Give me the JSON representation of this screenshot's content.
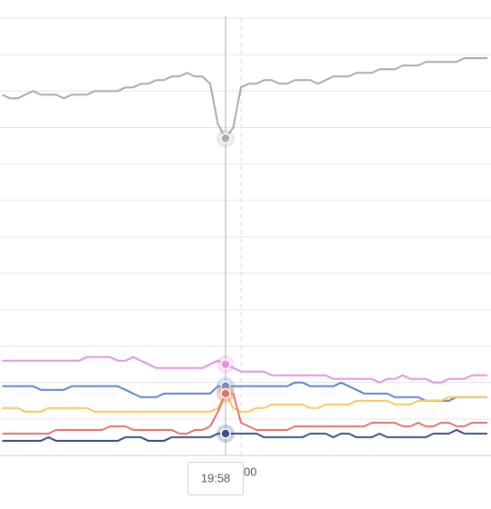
{
  "chart_data": {
    "type": "line",
    "categories": [
      null,
      null,
      null,
      null,
      null,
      null,
      null,
      null,
      null,
      null,
      null,
      null,
      null,
      null,
      null,
      null,
      null,
      null,
      null,
      null,
      null,
      null,
      null,
      null,
      null,
      null,
      null,
      null,
      null,
      "19:58",
      null,
      "00",
      null,
      null,
      null,
      null,
      null,
      null,
      null,
      null,
      null,
      null,
      null,
      null,
      null,
      null,
      null,
      null,
      null,
      null,
      null,
      null,
      null,
      null,
      null,
      null,
      null,
      null,
      null,
      null,
      null,
      null,
      null,
      null
    ],
    "hover_index": 29,
    "ylim": [
      0,
      12
    ],
    "yticks": [
      0,
      1,
      2,
      3,
      4,
      5,
      6,
      7,
      8,
      9,
      10,
      11,
      12
    ],
    "grid": true,
    "series": [
      {
        "color": "#aaaaaa",
        "values": [
          9.9,
          9.8,
          9.8,
          9.9,
          10.0,
          9.9,
          9.9,
          9.9,
          9.8,
          9.9,
          9.9,
          9.9,
          10.0,
          10.0,
          10.0,
          10.0,
          10.1,
          10.1,
          10.2,
          10.2,
          10.3,
          10.3,
          10.4,
          10.4,
          10.5,
          10.4,
          10.4,
          10.2,
          9.1,
          8.7,
          9.0,
          10.1,
          10.2,
          10.2,
          10.3,
          10.3,
          10.2,
          10.2,
          10.3,
          10.3,
          10.3,
          10.2,
          10.3,
          10.4,
          10.4,
          10.4,
          10.5,
          10.5,
          10.5,
          10.6,
          10.6,
          10.6,
          10.7,
          10.7,
          10.7,
          10.8,
          10.8,
          10.8,
          10.8,
          10.8,
          10.9,
          10.9,
          10.9,
          10.9
        ]
      },
      {
        "color": "#e591e0",
        "values": [
          2.6,
          2.6,
          2.6,
          2.6,
          2.6,
          2.6,
          2.6,
          2.6,
          2.6,
          2.6,
          2.6,
          2.7,
          2.7,
          2.7,
          2.7,
          2.6,
          2.6,
          2.7,
          2.6,
          2.5,
          2.4,
          2.4,
          2.4,
          2.4,
          2.4,
          2.4,
          2.4,
          2.5,
          2.6,
          2.5,
          2.4,
          2.3,
          2.3,
          2.3,
          2.3,
          2.2,
          2.2,
          2.2,
          2.2,
          2.2,
          2.2,
          2.2,
          2.2,
          2.1,
          2.1,
          2.1,
          2.1,
          2.1,
          2.1,
          2.0,
          2.1,
          2.1,
          2.2,
          2.1,
          2.1,
          2.1,
          2.0,
          2.0,
          2.1,
          2.1,
          2.1,
          2.2,
          2.2,
          2.2
        ]
      },
      {
        "color": "#5b85cc",
        "values": [
          1.9,
          1.9,
          1.9,
          1.9,
          1.9,
          1.8,
          1.8,
          1.8,
          1.8,
          1.9,
          1.9,
          1.9,
          1.9,
          1.9,
          1.9,
          1.9,
          1.8,
          1.7,
          1.6,
          1.6,
          1.6,
          1.7,
          1.7,
          1.7,
          1.7,
          1.7,
          1.7,
          1.7,
          1.9,
          1.9,
          1.9,
          1.9,
          1.9,
          1.9,
          1.9,
          1.9,
          1.9,
          1.9,
          2.0,
          2.0,
          1.9,
          1.9,
          1.9,
          1.9,
          2.0,
          1.9,
          1.8,
          1.7,
          1.7,
          1.7,
          1.7,
          1.6,
          1.6,
          1.6,
          1.6,
          1.5,
          1.5,
          1.5,
          1.5,
          1.6,
          1.6,
          1.6,
          1.6,
          1.6
        ]
      },
      {
        "color": "#f6c95e",
        "values": [
          1.3,
          1.3,
          1.3,
          1.2,
          1.2,
          1.2,
          1.3,
          1.3,
          1.3,
          1.3,
          1.3,
          1.3,
          1.2,
          1.2,
          1.2,
          1.2,
          1.2,
          1.2,
          1.2,
          1.2,
          1.2,
          1.2,
          1.2,
          1.2,
          1.2,
          1.2,
          1.2,
          1.2,
          1.3,
          1.7,
          1.3,
          1.2,
          1.2,
          1.3,
          1.3,
          1.4,
          1.4,
          1.4,
          1.4,
          1.4,
          1.3,
          1.3,
          1.4,
          1.4,
          1.4,
          1.4,
          1.5,
          1.5,
          1.5,
          1.5,
          1.5,
          1.4,
          1.4,
          1.4,
          1.5,
          1.5,
          1.5,
          1.5,
          1.6,
          1.6,
          1.6,
          1.6,
          1.6,
          1.6
        ]
      },
      {
        "color": "#e0736e",
        "values": [
          0.6,
          0.6,
          0.6,
          0.6,
          0.6,
          0.6,
          0.6,
          0.7,
          0.7,
          0.7,
          0.7,
          0.7,
          0.7,
          0.7,
          0.8,
          0.8,
          0.8,
          0.7,
          0.7,
          0.7,
          0.7,
          0.7,
          0.7,
          0.6,
          0.6,
          0.7,
          0.7,
          0.8,
          1.2,
          1.7,
          1.7,
          0.9,
          0.8,
          0.7,
          0.7,
          0.7,
          0.7,
          0.7,
          0.8,
          0.8,
          0.8,
          0.8,
          0.8,
          0.8,
          0.8,
          0.8,
          0.8,
          0.8,
          0.9,
          0.9,
          0.9,
          0.9,
          0.8,
          0.8,
          0.9,
          0.8,
          0.8,
          0.9,
          0.9,
          0.8,
          0.8,
          0.9,
          0.9,
          0.9
        ]
      },
      {
        "color": "#3b4f88",
        "values": [
          0.4,
          0.4,
          0.4,
          0.4,
          0.4,
          0.4,
          0.5,
          0.4,
          0.4,
          0.4,
          0.4,
          0.4,
          0.4,
          0.4,
          0.4,
          0.4,
          0.5,
          0.5,
          0.5,
          0.4,
          0.4,
          0.4,
          0.5,
          0.5,
          0.5,
          0.5,
          0.5,
          0.5,
          0.6,
          0.6,
          0.6,
          0.6,
          0.6,
          0.6,
          0.5,
          0.5,
          0.5,
          0.5,
          0.5,
          0.5,
          0.6,
          0.6,
          0.6,
          0.5,
          0.6,
          0.6,
          0.5,
          0.5,
          0.5,
          0.6,
          0.5,
          0.5,
          0.5,
          0.5,
          0.5,
          0.5,
          0.6,
          0.6,
          0.6,
          0.7,
          0.6,
          0.6,
          0.6,
          0.6
        ]
      }
    ]
  }
}
